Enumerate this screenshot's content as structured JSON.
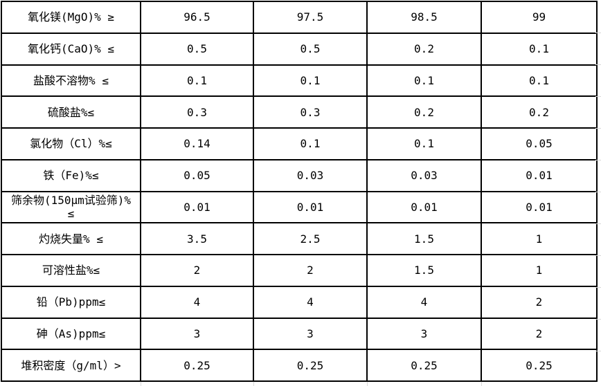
{
  "table": {
    "columns": 5,
    "rows": [
      {
        "label": "氧化镁(MgO)% ≥",
        "values": [
          "96.5",
          "97.5",
          "98.5",
          "99"
        ]
      },
      {
        "label": "氧化钙(CaO)% ≤",
        "values": [
          "0.5",
          "0.5",
          "0.2",
          "0.1"
        ]
      },
      {
        "label": "盐酸不溶物% ≤",
        "values": [
          "0.1",
          "0.1",
          "0.1",
          "0.1"
        ]
      },
      {
        "label": "硫酸盐%≤",
        "values": [
          "0.3",
          "0.3",
          "0.2",
          "0.2"
        ]
      },
      {
        "label": "氯化物（Cl）%≤",
        "values": [
          "0.14",
          "0.1",
          "0.1",
          "0.05"
        ]
      },
      {
        "label": "铁（Fe)%≤",
        "values": [
          "0.05",
          "0.03",
          "0.03",
          "0.01"
        ]
      },
      {
        "label": "筛余物(150μm试验筛)% ≤",
        "values": [
          "0.01",
          "0.01",
          "0.01",
          "0.01"
        ]
      },
      {
        "label": "灼烧失量% ≤",
        "values": [
          "3.5",
          "2.5",
          "1.5",
          "1"
        ]
      },
      {
        "label": "可溶性盐%≤",
        "values": [
          "2",
          "2",
          "1.5",
          "1"
        ]
      },
      {
        "label": "铅（Pb)ppm≤",
        "values": [
          "4",
          "4",
          "4",
          "2"
        ]
      },
      {
        "label": "砷（As)ppm≤",
        "values": [
          "3",
          "3",
          "3",
          "2"
        ]
      },
      {
        "label": "堆积密度（g/ml）>",
        "values": [
          "0.25",
          "0.25",
          "0.25",
          "0.25"
        ]
      }
    ]
  },
  "colors": {
    "border": "#000000",
    "gridline": "#d9d9d9",
    "background": "#ffffff",
    "text": "#000000"
  }
}
